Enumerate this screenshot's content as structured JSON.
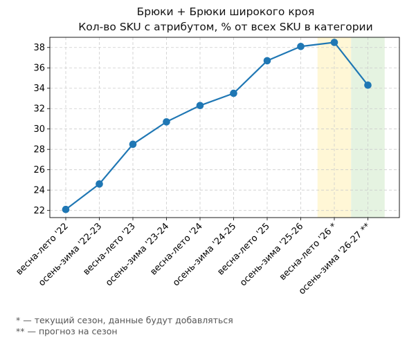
{
  "chart_data": {
    "type": "line",
    "title": "Брюки + Брюки широкого кроя",
    "subtitle": "Кол-во SKU с атрибутом, % от всех SKU в категории",
    "xlabel": "",
    "ylabel": "",
    "categories": [
      "весна-лето '22",
      "осень-зима '22-23",
      "весна-лето '23",
      "осень-зима '23-24",
      "весна-лето '24",
      "осень-зима '24-25",
      "весна-лето '25",
      "осень-зима '25-26",
      "весна-лето '26 *",
      "осень-зима '26-27 **"
    ],
    "series": [
      {
        "values": [
          22.1,
          24.6,
          28.5,
          30.7,
          32.3,
          33.5,
          36.7,
          38.1,
          38.5,
          34.3
        ]
      }
    ],
    "ylim": [
      21.3,
      39.0
    ],
    "yticks": [
      22,
      24,
      26,
      28,
      30,
      32,
      34,
      36,
      38
    ],
    "grid": true,
    "highlights": [
      {
        "category": "весна-лето '26 *",
        "color": "#fff7d6"
      },
      {
        "category": "осень-зима '26-27 **",
        "color": "#e5f3e1"
      }
    ],
    "line_color": "#1f77b4"
  },
  "footnotes": [
    "* — текущий сезон, данные будут добавляться",
    "** — прогноз на сезон"
  ]
}
